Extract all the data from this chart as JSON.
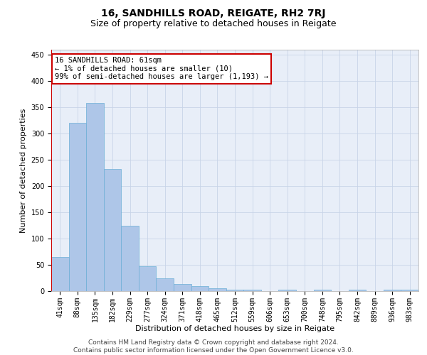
{
  "title": "16, SANDHILLS ROAD, REIGATE, RH2 7RJ",
  "subtitle": "Size of property relative to detached houses in Reigate",
  "xlabel": "Distribution of detached houses by size in Reigate",
  "ylabel": "Number of detached properties",
  "categories": [
    "41sqm",
    "88sqm",
    "135sqm",
    "182sqm",
    "229sqm",
    "277sqm",
    "324sqm",
    "371sqm",
    "418sqm",
    "465sqm",
    "512sqm",
    "559sqm",
    "606sqm",
    "653sqm",
    "700sqm",
    "748sqm",
    "795sqm",
    "842sqm",
    "889sqm",
    "936sqm",
    "983sqm"
  ],
  "values": [
    65,
    320,
    358,
    233,
    125,
    48,
    24,
    14,
    10,
    6,
    3,
    3,
    0,
    3,
    0,
    3,
    0,
    3,
    0,
    3,
    3
  ],
  "bar_color": "#aec6e8",
  "bar_edge_color": "#6baed6",
  "annotation_line1": "16 SANDHILLS ROAD: 61sqm",
  "annotation_line2": "← 1% of detached houses are smaller (10)",
  "annotation_line3": "99% of semi-detached houses are larger (1,193) →",
  "annotation_box_color": "#ffffff",
  "annotation_box_edge_color": "#cc0000",
  "red_line_color": "#cc0000",
  "ylim": [
    0,
    460
  ],
  "yticks": [
    0,
    50,
    100,
    150,
    200,
    250,
    300,
    350,
    400,
    450
  ],
  "grid_color": "#c8d4e8",
  "background_color": "#e8eef8",
  "footer_line1": "Contains HM Land Registry data © Crown copyright and database right 2024.",
  "footer_line2": "Contains public sector information licensed under the Open Government Licence v3.0.",
  "title_fontsize": 10,
  "subtitle_fontsize": 9,
  "axis_label_fontsize": 8,
  "tick_fontsize": 7,
  "annotation_fontsize": 7.5,
  "footer_fontsize": 6.5
}
